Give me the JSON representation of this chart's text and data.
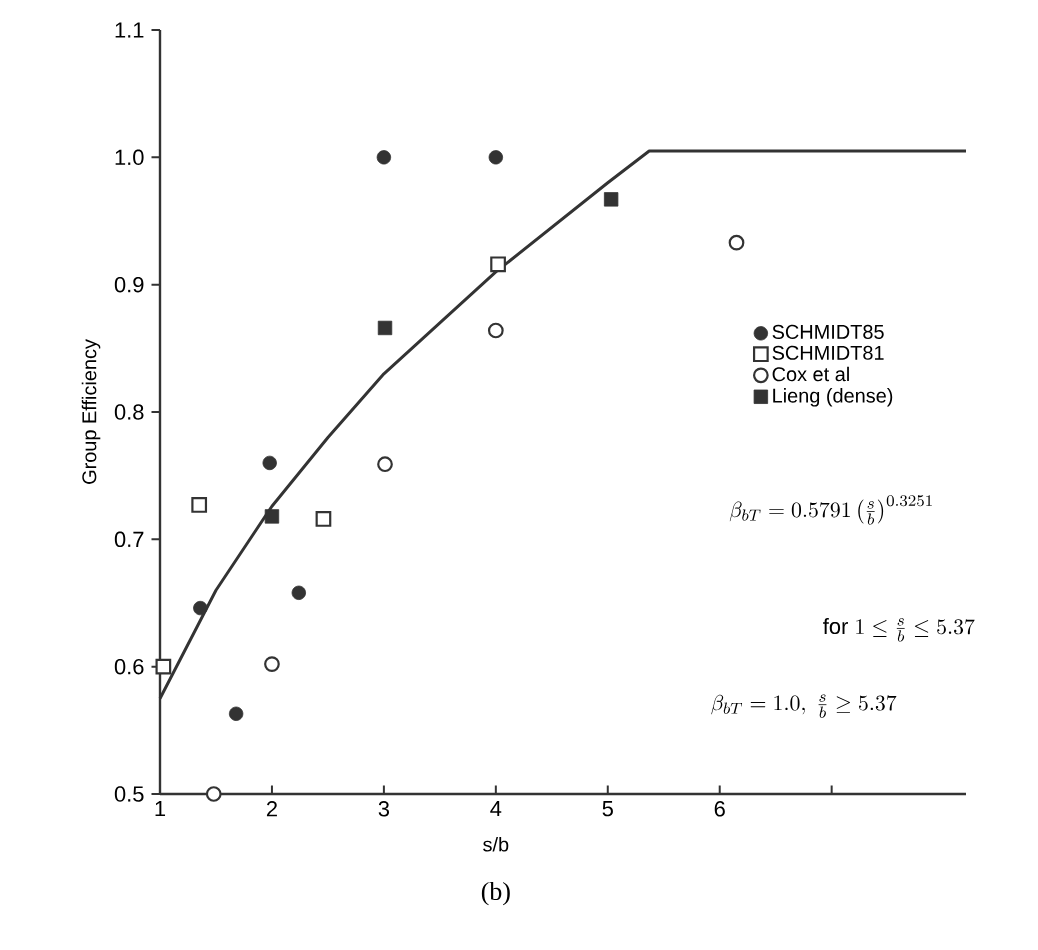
{
  "chart_data": {
    "type": "scatter",
    "xlabel": "s/b",
    "ylabel": "Group Efficiency",
    "xlim": [
      1,
      8.2
    ],
    "ylim": [
      0.5,
      1.1
    ],
    "xticks": [
      1,
      2,
      3,
      4,
      5,
      6,
      {
        "value": 7,
        "label": null
      }
    ],
    "yticks": [
      {
        "value": 0.5,
        "label": "0.5"
      },
      {
        "value": 0.6,
        "label": "0.6"
      },
      {
        "value": 0.7,
        "label": "0.7"
      },
      {
        "value": 0.8,
        "label": "0.8"
      },
      {
        "value": 0.9,
        "label": "0.9"
      },
      {
        "value": 1.0,
        "label": "1.0"
      },
      {
        "value": 1.1,
        "label": "1.1"
      }
    ],
    "legend": "right",
    "series": [
      {
        "name": "SCHMIDT85",
        "color": "#333333",
        "marker": "circle",
        "x": [
          1.36,
          1.68,
          1.98,
          2.24,
          3.0,
          4.0
        ],
        "values": [
          0.646,
          0.563,
          0.76,
          0.658,
          1.0,
          1.0
        ]
      },
      {
        "name": "SCHMIDT81",
        "color": "#333333",
        "marker": "square",
        "x": [
          1.03,
          1.35,
          2.46,
          4.02
        ],
        "values": [
          0.6,
          0.727,
          0.716,
          0.916
        ]
      },
      {
        "name": "Cox et al",
        "color": "#333333",
        "marker": "circle",
        "x": [
          1.48,
          2.0,
          3.01,
          4.0,
          6.15
        ],
        "values": [
          0.5,
          0.602,
          0.759,
          0.864,
          0.933
        ]
      },
      {
        "name": "Lieng (dense)",
        "color": "#333333",
        "marker": "square",
        "x": [
          2.0,
          3.01,
          5.03
        ],
        "values": [
          0.718,
          0.866,
          0.967
        ]
      },
      {
        "type": "line",
        "color": "#333333",
        "marker": "none",
        "line_style": "solid",
        "x": [
          1,
          1.5,
          2,
          2.5,
          3,
          3.5,
          4,
          4.5,
          5,
          5.37,
          8.2
        ],
        "values": [
          0.575,
          0.66,
          0.726,
          0.78,
          0.83,
          0.87,
          0.91,
          0.945,
          0.98,
          1.005,
          1.005
        ]
      }
    ],
    "annotations": [
      "\\beta_{bT} = 0.5791\\left(\\frac{s}{b}\\right)^{0.3251}",
      "\\mathrm{for}\\ 1 \\le \\frac{s}{b} \\le 5.37",
      "\\beta_{bT} = 1.0,\\ \\frac{s}{b} \\ge 5.37",
      "(b)"
    ]
  }
}
